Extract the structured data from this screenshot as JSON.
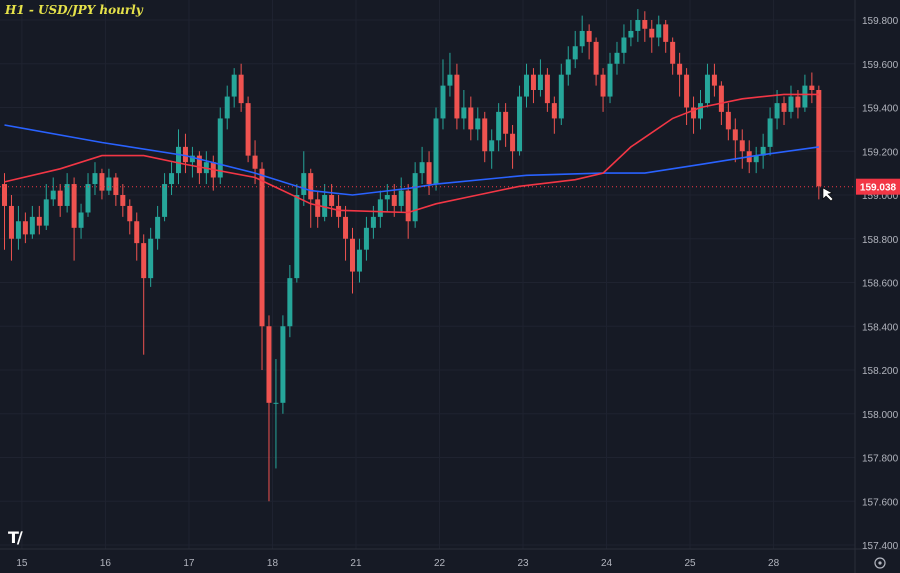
{
  "chart_data": {
    "type": "candlestick",
    "title": "H1 - USD/JPY hourly",
    "ylim": [
      157.4,
      159.8
    ],
    "y_ticks": [
      "159.800",
      "159.600",
      "159.400",
      "159.200",
      "159.000",
      "158.800",
      "158.600",
      "158.400",
      "158.200",
      "158.000",
      "157.800",
      "157.600",
      "157.400"
    ],
    "x_ticks": [
      {
        "label": "15",
        "at": 2.5
      },
      {
        "label": "16",
        "at": 14.5
      },
      {
        "label": "17",
        "at": 26.5
      },
      {
        "label": "18",
        "at": 38.5
      },
      {
        "label": "21",
        "at": 50.5
      },
      {
        "label": "22",
        "at": 62.5
      },
      {
        "label": "23",
        "at": 74.5
      },
      {
        "label": "24",
        "at": 86.5
      },
      {
        "label": "25",
        "at": 98.5
      },
      {
        "label": "28",
        "at": 110.5
      }
    ],
    "grid": true,
    "current_price": "159.038",
    "colors": {
      "up": "#26a69a",
      "down": "#ef5350",
      "ma_blue": "#2962ff",
      "ma_red": "#f23645",
      "background": "#161a25",
      "price_label": "#f23645"
    },
    "candles": [
      [
        159.05,
        159.1,
        158.75,
        158.95
      ],
      [
        158.95,
        159.0,
        158.7,
        158.8
      ],
      [
        158.8,
        158.95,
        158.75,
        158.88
      ],
      [
        158.88,
        158.92,
        158.78,
        158.82
      ],
      [
        158.82,
        158.95,
        158.8,
        158.9
      ],
      [
        158.9,
        158.95,
        158.82,
        158.86
      ],
      [
        158.86,
        159.05,
        158.84,
        158.98
      ],
      [
        158.98,
        159.08,
        158.95,
        159.02
      ],
      [
        159.02,
        159.05,
        158.9,
        158.95
      ],
      [
        158.95,
        159.1,
        158.92,
        159.05
      ],
      [
        159.05,
        159.08,
        158.7,
        158.85
      ],
      [
        158.85,
        158.96,
        158.8,
        158.92
      ],
      [
        158.92,
        159.1,
        158.9,
        159.05
      ],
      [
        159.05,
        159.15,
        159.0,
        159.1
      ],
      [
        159.1,
        159.12,
        158.98,
        159.02
      ],
      [
        159.02,
        159.12,
        159.0,
        159.08
      ],
      [
        159.08,
        159.1,
        158.95,
        159.0
      ],
      [
        159.0,
        159.05,
        158.9,
        158.95
      ],
      [
        158.95,
        158.98,
        158.82,
        158.88
      ],
      [
        158.88,
        158.92,
        158.7,
        158.78
      ],
      [
        158.78,
        158.82,
        158.27,
        158.62
      ],
      [
        158.62,
        158.85,
        158.58,
        158.8
      ],
      [
        158.8,
        158.95,
        158.75,
        158.9
      ],
      [
        158.9,
        159.1,
        158.88,
        159.05
      ],
      [
        159.05,
        159.15,
        159.0,
        159.1
      ],
      [
        159.1,
        159.3,
        159.05,
        159.22
      ],
      [
        159.22,
        159.28,
        159.1,
        159.15
      ],
      [
        159.15,
        159.22,
        159.08,
        159.18
      ],
      [
        159.18,
        159.2,
        159.05,
        159.1
      ],
      [
        159.1,
        159.2,
        159.05,
        159.15
      ],
      [
        159.15,
        159.18,
        159.02,
        159.08
      ],
      [
        159.08,
        159.4,
        159.05,
        159.35
      ],
      [
        159.35,
        159.5,
        159.3,
        159.45
      ],
      [
        159.45,
        159.58,
        159.4,
        159.55
      ],
      [
        159.55,
        159.6,
        159.38,
        159.42
      ],
      [
        159.42,
        159.45,
        159.15,
        159.18
      ],
      [
        159.18,
        159.25,
        159.05,
        159.12
      ],
      [
        159.12,
        159.15,
        158.2,
        158.4
      ],
      [
        158.4,
        158.45,
        157.6,
        158.05
      ],
      [
        158.05,
        158.25,
        157.75,
        158.05
      ],
      [
        158.05,
        158.45,
        158.0,
        158.4
      ],
      [
        158.4,
        158.68,
        158.35,
        158.62
      ],
      [
        158.62,
        159.05,
        158.6,
        159.0
      ],
      [
        159.0,
        159.2,
        158.95,
        159.1
      ],
      [
        159.1,
        159.12,
        158.85,
        158.98
      ],
      [
        158.98,
        159.02,
        158.85,
        158.9
      ],
      [
        158.9,
        159.05,
        158.88,
        159.0
      ],
      [
        159.0,
        159.05,
        158.9,
        158.95
      ],
      [
        158.95,
        159.0,
        158.85,
        158.9
      ],
      [
        158.9,
        158.95,
        158.7,
        158.8
      ],
      [
        158.8,
        158.85,
        158.55,
        158.65
      ],
      [
        158.65,
        158.8,
        158.6,
        158.75
      ],
      [
        158.75,
        158.9,
        158.7,
        158.85
      ],
      [
        158.85,
        158.95,
        158.8,
        158.9
      ],
      [
        158.9,
        159.02,
        158.85,
        158.98
      ],
      [
        158.98,
        159.05,
        158.92,
        159.0
      ],
      [
        159.0,
        159.05,
        158.9,
        158.95
      ],
      [
        158.95,
        159.08,
        158.92,
        159.02
      ],
      [
        159.02,
        159.05,
        158.8,
        158.88
      ],
      [
        158.88,
        159.15,
        158.85,
        159.1
      ],
      [
        159.1,
        159.22,
        159.05,
        159.15
      ],
      [
        159.15,
        159.2,
        159.0,
        159.05
      ],
      [
        159.05,
        159.4,
        159.02,
        159.35
      ],
      [
        159.35,
        159.62,
        159.3,
        159.5
      ],
      [
        159.5,
        159.65,
        159.45,
        159.55
      ],
      [
        159.55,
        159.6,
        159.3,
        159.35
      ],
      [
        159.35,
        159.48,
        159.3,
        159.4
      ],
      [
        159.4,
        159.45,
        159.25,
        159.3
      ],
      [
        159.3,
        159.4,
        159.25,
        159.35
      ],
      [
        159.35,
        159.38,
        159.15,
        159.2
      ],
      [
        159.2,
        159.3,
        159.12,
        159.25
      ],
      [
        159.25,
        159.42,
        159.2,
        159.38
      ],
      [
        159.38,
        159.42,
        159.22,
        159.28
      ],
      [
        159.28,
        159.32,
        159.12,
        159.2
      ],
      [
        159.2,
        159.5,
        159.18,
        159.45
      ],
      [
        159.45,
        159.6,
        159.4,
        159.55
      ],
      [
        159.55,
        159.58,
        159.42,
        159.48
      ],
      [
        159.48,
        159.62,
        159.45,
        159.55
      ],
      [
        159.55,
        159.58,
        159.38,
        159.42
      ],
      [
        159.42,
        159.45,
        159.28,
        159.35
      ],
      [
        159.35,
        159.6,
        159.32,
        159.55
      ],
      [
        159.55,
        159.68,
        159.5,
        159.62
      ],
      [
        159.62,
        159.75,
        159.58,
        159.68
      ],
      [
        159.68,
        159.82,
        159.65,
        159.75
      ],
      [
        159.75,
        159.78,
        159.62,
        159.7
      ],
      [
        159.7,
        159.72,
        159.5,
        159.55
      ],
      [
        159.55,
        159.58,
        159.38,
        159.45
      ],
      [
        159.45,
        159.65,
        159.42,
        159.6
      ],
      [
        159.6,
        159.7,
        159.55,
        159.65
      ],
      [
        159.65,
        159.78,
        159.6,
        159.72
      ],
      [
        159.72,
        159.8,
        159.68,
        159.75
      ],
      [
        159.75,
        159.85,
        159.7,
        159.8
      ],
      [
        159.8,
        159.84,
        159.7,
        159.76
      ],
      [
        159.76,
        159.8,
        159.65,
        159.72
      ],
      [
        159.72,
        159.82,
        159.68,
        159.78
      ],
      [
        159.78,
        159.8,
        159.65,
        159.7
      ],
      [
        159.7,
        159.72,
        159.55,
        159.6
      ],
      [
        159.6,
        159.65,
        159.45,
        159.55
      ],
      [
        159.55,
        159.58,
        159.32,
        159.4
      ],
      [
        159.4,
        159.45,
        159.28,
        159.35
      ],
      [
        159.35,
        159.48,
        159.3,
        159.42
      ],
      [
        159.42,
        159.6,
        159.4,
        159.55
      ],
      [
        159.55,
        159.6,
        159.45,
        159.5
      ],
      [
        159.5,
        159.52,
        159.32,
        159.38
      ],
      [
        159.38,
        159.42,
        159.25,
        159.3
      ],
      [
        159.3,
        159.35,
        159.15,
        159.25
      ],
      [
        159.25,
        159.3,
        159.12,
        159.2
      ],
      [
        159.2,
        159.25,
        159.1,
        159.15
      ],
      [
        159.15,
        159.22,
        159.1,
        159.18
      ],
      [
        159.18,
        159.28,
        159.12,
        159.22
      ],
      [
        159.22,
        159.4,
        159.18,
        159.35
      ],
      [
        159.35,
        159.48,
        159.3,
        159.42
      ],
      [
        159.42,
        159.45,
        159.32,
        159.38
      ],
      [
        159.38,
        159.5,
        159.35,
        159.45
      ],
      [
        159.45,
        159.48,
        159.35,
        159.4
      ],
      [
        159.4,
        159.55,
        159.38,
        159.5
      ],
      [
        159.5,
        159.56,
        159.42,
        159.48
      ],
      [
        159.48,
        159.5,
        158.98,
        159.04
      ]
    ],
    "series": [
      {
        "color": "#2962ff",
        "points": [
          [
            0,
            159.32
          ],
          [
            14,
            159.24
          ],
          [
            26,
            159.18
          ],
          [
            36,
            159.1
          ],
          [
            44,
            159.02
          ],
          [
            50,
            159.0
          ],
          [
            58,
            159.03
          ],
          [
            62,
            159.05
          ],
          [
            75,
            159.09
          ],
          [
            86,
            159.1
          ],
          [
            92,
            159.1
          ],
          [
            100,
            159.14
          ],
          [
            108,
            159.18
          ],
          [
            117,
            159.22
          ]
        ]
      },
      {
        "color": "#f23645",
        "points": [
          [
            0,
            159.06
          ],
          [
            8,
            159.12
          ],
          [
            14,
            159.18
          ],
          [
            20,
            159.18
          ],
          [
            26,
            159.14
          ],
          [
            36,
            159.08
          ],
          [
            40,
            159.02
          ],
          [
            44,
            158.96
          ],
          [
            48,
            158.93
          ],
          [
            58,
            158.92
          ],
          [
            62,
            158.96
          ],
          [
            68,
            159.0
          ],
          [
            74,
            159.04
          ],
          [
            82,
            159.07
          ],
          [
            86,
            159.1
          ],
          [
            90,
            159.22
          ],
          [
            96,
            159.35
          ],
          [
            100,
            159.4
          ],
          [
            106,
            159.44
          ],
          [
            112,
            159.46
          ],
          [
            117,
            159.46
          ]
        ]
      }
    ]
  },
  "ui": {
    "logo": "TV",
    "settings_icon": "gear-icon",
    "cursor_icon": "arrow-cursor-icon"
  }
}
